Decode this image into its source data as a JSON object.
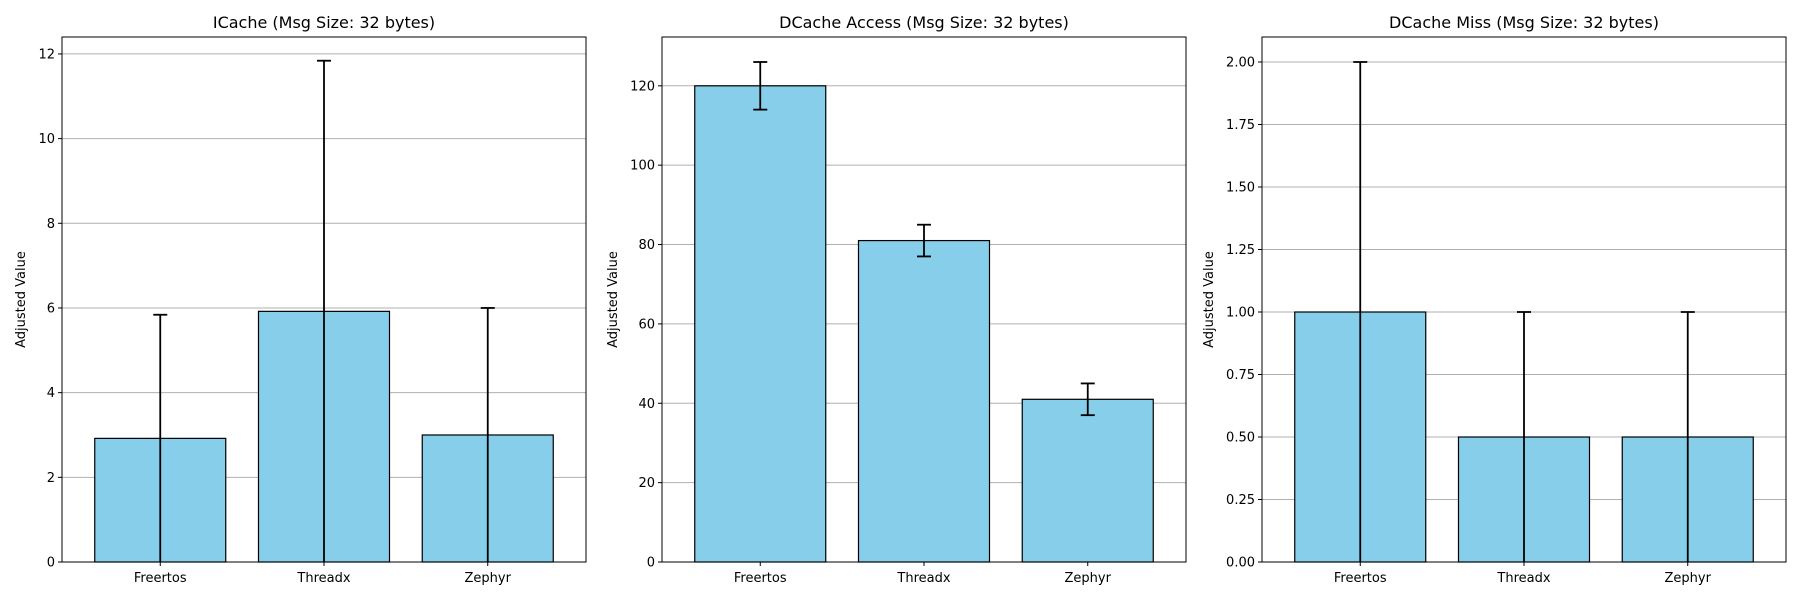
{
  "figure": {
    "bar_color": "#87ceeb",
    "edge_color": "#000000",
    "grid_color": "#b0b0b0"
  },
  "chart_data": [
    {
      "type": "bar",
      "title": "ICache (Msg Size: 32 bytes)",
      "xlabel": "",
      "ylabel": "Adjusted Value",
      "categories": [
        "Freertos",
        "Threadx",
        "Zephyr"
      ],
      "values": [
        2.92,
        5.92,
        3.0
      ],
      "errors": [
        2.92,
        5.92,
        3.0
      ],
      "ylim": [
        0,
        12.4
      ],
      "yticks": [
        0,
        2,
        4,
        6,
        8,
        10,
        12
      ],
      "ytick_labels": [
        "0",
        "2",
        "4",
        "6",
        "8",
        "10",
        "12"
      ],
      "grid": "y"
    },
    {
      "type": "bar",
      "title": "DCache Access (Msg Size: 32 bytes)",
      "xlabel": "",
      "ylabel": "Adjusted Value",
      "categories": [
        "Freertos",
        "Threadx",
        "Zephyr"
      ],
      "values": [
        120,
        81,
        41
      ],
      "errors": [
        6,
        4,
        4
      ],
      "ylim": [
        0,
        132.3
      ],
      "yticks": [
        0,
        20,
        40,
        60,
        80,
        100,
        120
      ],
      "ytick_labels": [
        "0",
        "20",
        "40",
        "60",
        "80",
        "100",
        "120"
      ],
      "grid": "y"
    },
    {
      "type": "bar",
      "title": "DCache Miss (Msg Size: 32 bytes)",
      "xlabel": "",
      "ylabel": "Adjusted Value",
      "categories": [
        "Freertos",
        "Threadx",
        "Zephyr"
      ],
      "values": [
        1.0,
        0.5,
        0.5
      ],
      "errors": [
        1.0,
        0.5,
        0.5
      ],
      "ylim": [
        0,
        2.1
      ],
      "yticks": [
        0,
        0.25,
        0.5,
        0.75,
        1.0,
        1.25,
        1.5,
        1.75,
        2.0
      ],
      "ytick_labels": [
        "0.00",
        "0.25",
        "0.50",
        "0.75",
        "1.00",
        "1.25",
        "1.50",
        "1.75",
        "2.00"
      ],
      "grid": "y"
    }
  ]
}
